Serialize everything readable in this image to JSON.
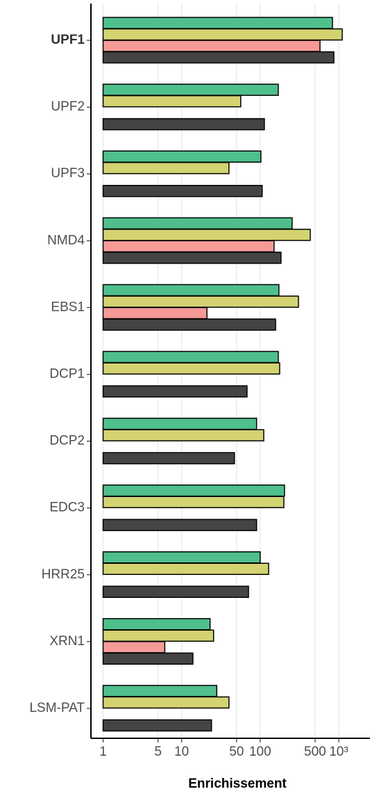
{
  "chart_data": {
    "type": "bar",
    "orientation": "horizontal",
    "x_label": "Enrichissement",
    "categories": [
      "UPF1",
      "UPF2",
      "UPF3",
      "NMD4",
      "EBS1",
      "DCP1",
      "DCP2",
      "EDC3",
      "HRR25",
      "XRN1",
      "LSM-PAT"
    ],
    "bold_categories": [
      0
    ],
    "series": [
      {
        "color": "#4fbf8c",
        "values": [
          832,
          170,
          102,
          255,
          173,
          170,
          90,
          204,
          100,
          23,
          28
        ]
      },
      {
        "color": "#d3d372",
        "values": [
          1107,
          56.5,
          40,
          434,
          307,
          177,
          111,
          200,
          128,
          25.5,
          40
        ]
      },
      {
        "color": "#f59a97",
        "values": [
          577,
          null,
          null,
          150,
          21,
          null,
          null,
          null,
          null,
          6.1,
          null
        ]
      },
      {
        "color": "#444444",
        "values": [
          867,
          113,
          106,
          184,
          157,
          68,
          47,
          90,
          71,
          13.9,
          24
        ]
      }
    ],
    "xscale": "log",
    "xlim": [
      0.7,
      2500
    ],
    "xticks": [
      1,
      5,
      10,
      50,
      100,
      500,
      {
        "value": 1000,
        "label": "10³"
      }
    ],
    "grid": true
  }
}
